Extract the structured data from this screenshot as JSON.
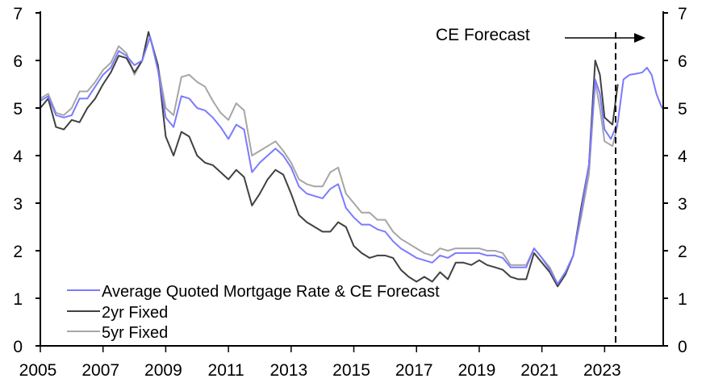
{
  "chart_data": {
    "type": "line",
    "title": "",
    "xlabel": "",
    "ylabel": "",
    "xlim": [
      2005,
      2024.87
    ],
    "ylim": [
      0,
      7
    ],
    "x_ticks": [
      "2005",
      "2007",
      "2009",
      "2011",
      "2013",
      "2015",
      "2017",
      "2019",
      "2021",
      "2023"
    ],
    "y_ticks": [
      "0",
      "1",
      "2",
      "3",
      "4",
      "5",
      "6",
      "7"
    ],
    "grid": false,
    "legend_position": "bottom-left",
    "annotation": {
      "text": "CE Forecast",
      "forecast_start": 2023.44
    },
    "series": [
      {
        "name": "Average Quoted Mortgage Rate & CE Forecast",
        "color": "#7b7bff",
        "x": [
          2005.0,
          2005.25,
          2005.5,
          2005.75,
          2006.0,
          2006.25,
          2006.5,
          2006.75,
          2007.0,
          2007.25,
          2007.5,
          2007.75,
          2008.0,
          2008.25,
          2008.5,
          2008.75,
          2009.0,
          2009.25,
          2009.5,
          2009.75,
          2010.0,
          2010.25,
          2010.5,
          2010.75,
          2011.0,
          2011.25,
          2011.5,
          2011.75,
          2012.0,
          2012.25,
          2012.5,
          2012.75,
          2013.0,
          2013.25,
          2013.5,
          2013.75,
          2014.0,
          2014.25,
          2014.5,
          2014.75,
          2015.0,
          2015.25,
          2015.5,
          2015.75,
          2016.0,
          2016.25,
          2016.5,
          2016.75,
          2017.0,
          2017.25,
          2017.5,
          2017.75,
          2018.0,
          2018.25,
          2018.5,
          2018.75,
          2019.0,
          2019.25,
          2019.5,
          2019.75,
          2020.0,
          2020.25,
          2020.5,
          2020.75,
          2021.0,
          2021.25,
          2021.5,
          2021.75,
          2022.0,
          2022.25,
          2022.5,
          2022.7,
          2022.85,
          2023.0,
          2023.2,
          2023.42,
          2023.6,
          2023.8,
          2024.0,
          2024.2,
          2024.35,
          2024.5,
          2024.65,
          2024.8,
          2024.87
        ],
        "y": [
          5.15,
          5.25,
          4.85,
          4.8,
          4.85,
          5.2,
          5.2,
          5.45,
          5.7,
          5.85,
          6.2,
          6.1,
          5.9,
          6.0,
          6.5,
          5.8,
          4.8,
          4.6,
          5.25,
          5.2,
          5.0,
          4.95,
          4.8,
          4.6,
          4.35,
          4.65,
          4.55,
          3.65,
          3.85,
          4.0,
          4.15,
          4.0,
          3.75,
          3.35,
          3.2,
          3.15,
          3.1,
          3.3,
          3.4,
          2.9,
          2.7,
          2.55,
          2.55,
          2.45,
          2.4,
          2.2,
          2.05,
          1.95,
          1.85,
          1.8,
          1.75,
          1.9,
          1.85,
          1.95,
          1.95,
          1.95,
          1.95,
          1.9,
          1.9,
          1.85,
          1.65,
          1.65,
          1.65,
          2.05,
          1.85,
          1.6,
          1.3,
          1.55,
          1.9,
          2.8,
          3.8,
          5.6,
          5.3,
          4.55,
          4.35,
          4.7,
          5.6,
          5.7,
          5.72,
          5.75,
          5.85,
          5.7,
          5.3,
          5.05,
          4.97
        ]
      },
      {
        "name": "2yr Fixed",
        "color": "#404040",
        "x": [
          2005.0,
          2005.25,
          2005.5,
          2005.75,
          2006.0,
          2006.25,
          2006.5,
          2006.75,
          2007.0,
          2007.25,
          2007.5,
          2007.75,
          2008.0,
          2008.25,
          2008.45,
          2008.75,
          2009.0,
          2009.25,
          2009.5,
          2009.75,
          2010.0,
          2010.25,
          2010.5,
          2010.75,
          2011.0,
          2011.25,
          2011.5,
          2011.75,
          2012.0,
          2012.25,
          2012.5,
          2012.75,
          2013.0,
          2013.25,
          2013.5,
          2013.75,
          2014.0,
          2014.25,
          2014.5,
          2014.75,
          2015.0,
          2015.25,
          2015.5,
          2015.75,
          2016.0,
          2016.25,
          2016.5,
          2016.75,
          2017.0,
          2017.25,
          2017.5,
          2017.75,
          2018.0,
          2018.25,
          2018.5,
          2018.75,
          2019.0,
          2019.25,
          2019.5,
          2019.75,
          2020.0,
          2020.25,
          2020.5,
          2020.75,
          2021.0,
          2021.25,
          2021.5,
          2021.75,
          2022.0,
          2022.25,
          2022.5,
          2022.7,
          2022.85,
          2023.0,
          2023.25,
          2023.42
        ],
        "y": [
          5.0,
          5.2,
          4.6,
          4.55,
          4.75,
          4.7,
          5.0,
          5.2,
          5.5,
          5.75,
          6.1,
          6.05,
          5.75,
          6.0,
          6.6,
          5.9,
          4.4,
          4.0,
          4.5,
          4.4,
          4.0,
          3.85,
          3.8,
          3.65,
          3.5,
          3.7,
          3.55,
          2.95,
          3.2,
          3.5,
          3.7,
          3.6,
          3.2,
          2.75,
          2.6,
          2.5,
          2.4,
          2.4,
          2.6,
          2.5,
          2.1,
          1.95,
          1.85,
          1.9,
          1.9,
          1.85,
          1.6,
          1.45,
          1.35,
          1.45,
          1.35,
          1.55,
          1.4,
          1.75,
          1.75,
          1.7,
          1.8,
          1.7,
          1.65,
          1.6,
          1.45,
          1.4,
          1.4,
          1.95,
          1.75,
          1.55,
          1.25,
          1.5,
          1.9,
          2.9,
          3.8,
          6.0,
          5.7,
          4.8,
          4.65,
          5.5
        ]
      },
      {
        "name": "5yr Fixed",
        "color": "#a6a6a6",
        "x": [
          2005.0,
          2005.25,
          2005.5,
          2005.75,
          2006.0,
          2006.25,
          2006.5,
          2006.75,
          2007.0,
          2007.25,
          2007.5,
          2007.75,
          2008.0,
          2008.25,
          2008.5,
          2008.75,
          2009.0,
          2009.25,
          2009.5,
          2009.75,
          2010.0,
          2010.25,
          2010.5,
          2010.75,
          2011.0,
          2011.25,
          2011.5,
          2011.75,
          2012.0,
          2012.25,
          2012.5,
          2012.75,
          2013.0,
          2013.25,
          2013.5,
          2013.75,
          2014.0,
          2014.25,
          2014.5,
          2014.75,
          2015.0,
          2015.25,
          2015.5,
          2015.75,
          2016.0,
          2016.25,
          2016.5,
          2016.75,
          2017.0,
          2017.25,
          2017.5,
          2017.75,
          2018.0,
          2018.25,
          2018.5,
          2018.75,
          2019.0,
          2019.25,
          2019.5,
          2019.75,
          2020.0,
          2020.25,
          2020.5,
          2020.75,
          2021.0,
          2021.25,
          2021.5,
          2021.75,
          2022.0,
          2022.25,
          2022.5,
          2022.7,
          2022.85,
          2023.0,
          2023.25,
          2023.42
        ],
        "y": [
          5.2,
          5.3,
          4.9,
          4.85,
          5.0,
          5.35,
          5.35,
          5.55,
          5.8,
          5.95,
          6.3,
          6.15,
          5.7,
          6.0,
          6.5,
          5.9,
          5.0,
          4.85,
          5.65,
          5.7,
          5.55,
          5.45,
          5.15,
          4.9,
          4.75,
          5.1,
          4.95,
          4.0,
          4.1,
          4.2,
          4.3,
          4.1,
          3.85,
          3.5,
          3.4,
          3.35,
          3.35,
          3.65,
          3.75,
          3.2,
          3.0,
          2.8,
          2.8,
          2.65,
          2.65,
          2.4,
          2.25,
          2.15,
          2.05,
          1.95,
          1.9,
          2.05,
          2.0,
          2.05,
          2.05,
          2.05,
          2.05,
          2.0,
          2.0,
          1.95,
          1.7,
          1.7,
          1.7,
          2.05,
          1.85,
          1.65,
          1.3,
          1.55,
          1.9,
          2.7,
          3.6,
          5.55,
          5.0,
          4.3,
          4.2,
          4.65
        ]
      }
    ]
  }
}
